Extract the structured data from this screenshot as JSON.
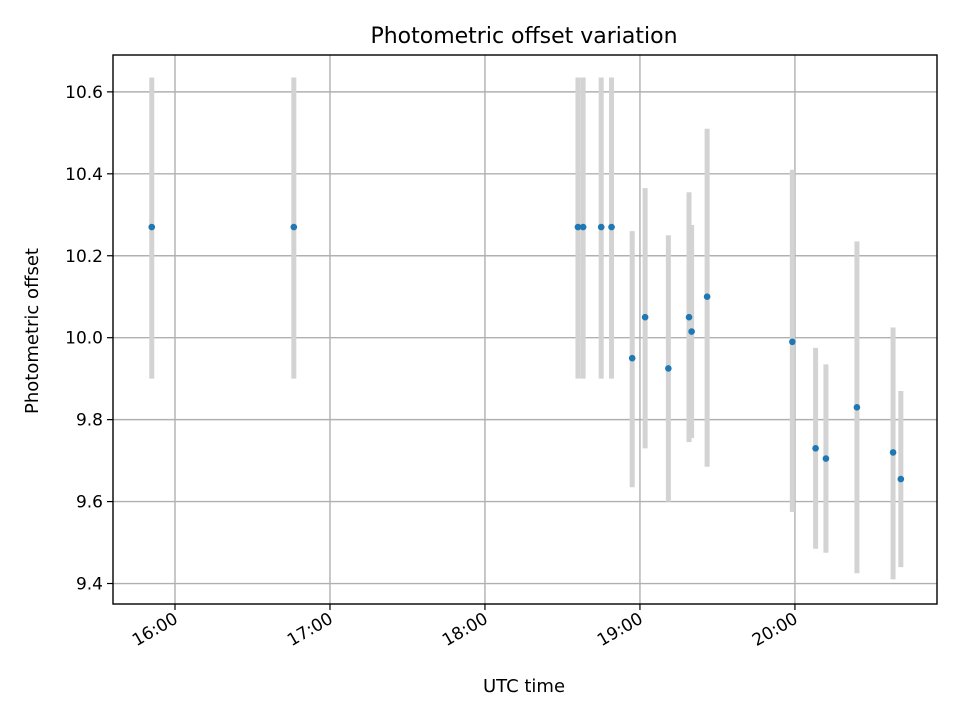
{
  "chart_data": {
    "type": "scatter",
    "title": "Photometric offset variation",
    "xlabel": "UTC time",
    "ylabel": "Photometric offset",
    "x_ticks": [
      "16:00",
      "17:00",
      "18:00",
      "19:00",
      "20:00"
    ],
    "y_ticks": [
      "9.4",
      "9.6",
      "9.8",
      "10.0",
      "10.2",
      "10.4",
      "10.6"
    ],
    "xlim": [
      "15:36",
      "20:55"
    ],
    "ylim": [
      9.35,
      10.69
    ],
    "grid": true,
    "colors": {
      "marker": "#1f77b4",
      "errorbar": "#d3d3d3"
    },
    "points": [
      {
        "x": "15:51",
        "y": 10.27,
        "ylow": 9.9,
        "yhigh": 10.635
      },
      {
        "x": "16:46",
        "y": 10.27,
        "ylow": 9.9,
        "yhigh": 10.635
      },
      {
        "x": "18:36",
        "y": 10.27,
        "ylow": 9.9,
        "yhigh": 10.635
      },
      {
        "x": "18:38",
        "y": 10.27,
        "ylow": 9.9,
        "yhigh": 10.635
      },
      {
        "x": "18:45",
        "y": 10.27,
        "ylow": 9.9,
        "yhigh": 10.635
      },
      {
        "x": "18:49",
        "y": 10.27,
        "ylow": 9.9,
        "yhigh": 10.635
      },
      {
        "x": "18:57",
        "y": 9.95,
        "ylow": 9.635,
        "yhigh": 10.26
      },
      {
        "x": "19:02",
        "y": 10.05,
        "ylow": 9.73,
        "yhigh": 10.365
      },
      {
        "x": "19:11",
        "y": 9.925,
        "ylow": 9.6,
        "yhigh": 10.25
      },
      {
        "x": "19:19",
        "y": 10.05,
        "ylow": 9.745,
        "yhigh": 10.355
      },
      {
        "x": "19:20",
        "y": 10.015,
        "ylow": 9.755,
        "yhigh": 10.275
      },
      {
        "x": "19:26",
        "y": 10.1,
        "ylow": 9.685,
        "yhigh": 10.51
      },
      {
        "x": "19:59",
        "y": 9.99,
        "ylow": 9.575,
        "yhigh": 10.41
      },
      {
        "x": "20:08",
        "y": 9.73,
        "ylow": 9.485,
        "yhigh": 9.975
      },
      {
        "x": "20:12",
        "y": 9.705,
        "ylow": 9.475,
        "yhigh": 9.935
      },
      {
        "x": "20:24",
        "y": 9.83,
        "ylow": 9.425,
        "yhigh": 10.235
      },
      {
        "x": "20:38",
        "y": 9.72,
        "ylow": 9.41,
        "yhigh": 10.025
      },
      {
        "x": "20:41",
        "y": 9.655,
        "ylow": 9.44,
        "yhigh": 9.87
      }
    ]
  }
}
